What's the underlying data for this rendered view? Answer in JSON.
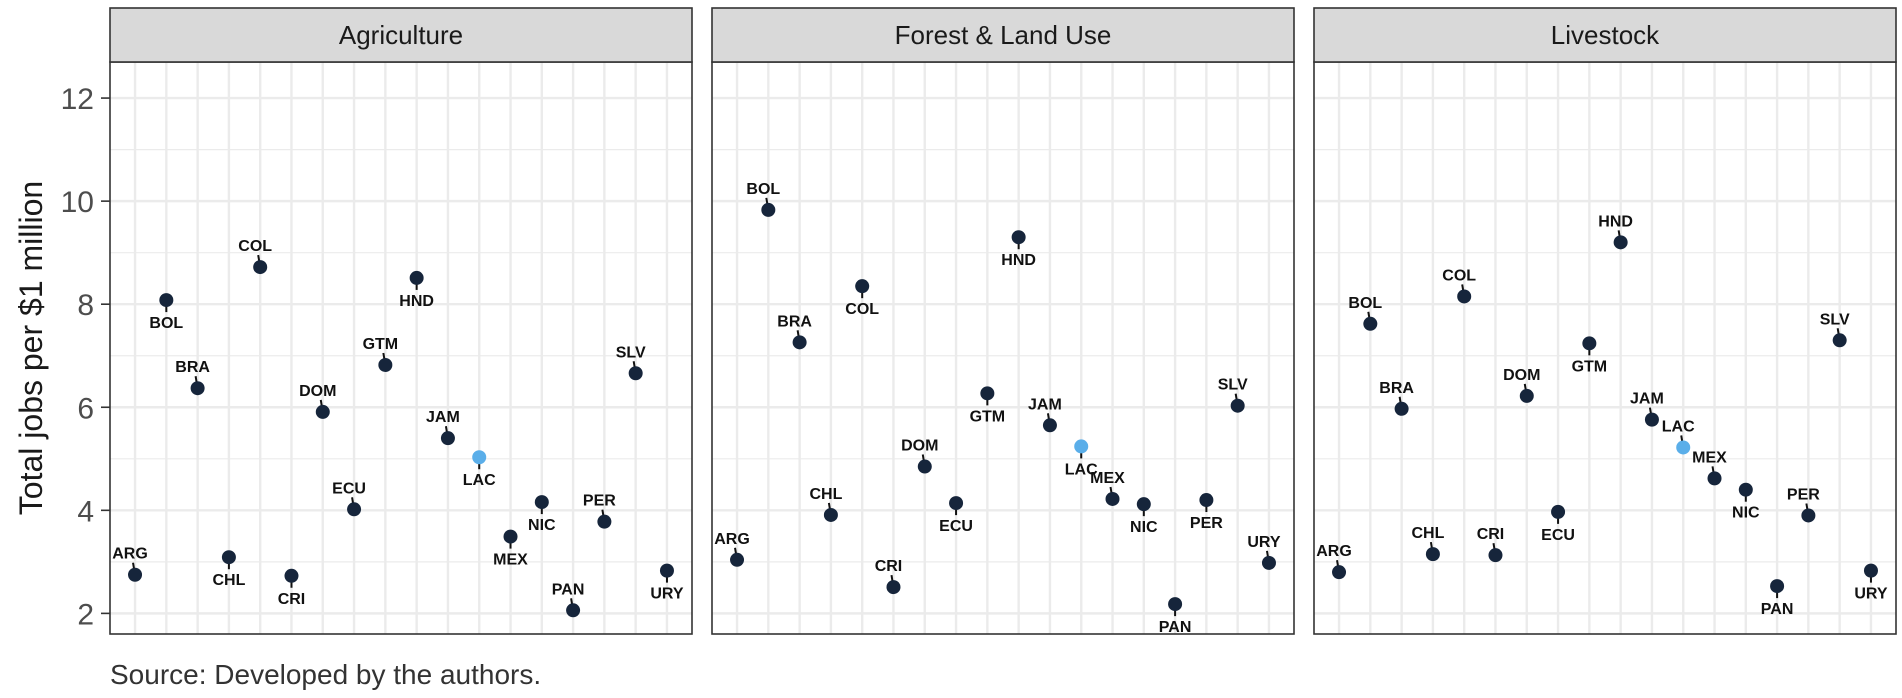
{
  "chart_data": {
    "type": "scatter",
    "ylabel": "Total jobs per $1 million",
    "ylim": [
      1.6,
      12.7
    ],
    "yticks": [
      2,
      4,
      6,
      8,
      10,
      12
    ],
    "grid": true,
    "caption": "Source: Developed by the authors.",
    "countries": [
      "ARG",
      "BOL",
      "BRA",
      "CHL",
      "COL",
      "CRI",
      "DOM",
      "ECU",
      "GTM",
      "HND",
      "JAM",
      "LAC",
      "MEX",
      "NIC",
      "PAN",
      "PER",
      "SLV",
      "URY"
    ],
    "highlight": "LAC",
    "colors": {
      "point": "#16253b",
      "highlight": "#5aaee9",
      "strip_bg": "#d9d9d9",
      "grid": "#ebebeb",
      "panel_border": "#333333"
    },
    "panels": [
      {
        "title": "Agriculture",
        "values": [
          2.75,
          8.08,
          6.37,
          3.09,
          8.72,
          2.73,
          5.91,
          4.02,
          6.82,
          8.51,
          5.4,
          5.03,
          3.49,
          4.16,
          2.06,
          3.78,
          6.66,
          2.83
        ],
        "label_pos": [
          "above",
          "below",
          "above",
          "below",
          "above",
          "below",
          "above",
          "above",
          "above",
          "below",
          "above",
          "below",
          "below",
          "below",
          "above",
          "above",
          "above",
          "below"
        ]
      },
      {
        "title": "Forest & Land Use",
        "values": [
          3.04,
          9.83,
          7.26,
          3.91,
          8.35,
          2.51,
          4.85,
          4.14,
          6.27,
          9.3,
          5.65,
          5.24,
          4.22,
          4.12,
          2.18,
          4.2,
          6.03,
          2.98
        ],
        "label_pos": [
          "above",
          "above",
          "above",
          "above",
          "below",
          "above",
          "above",
          "below",
          "below",
          "below",
          "above",
          "below",
          "above",
          "below",
          "below",
          "below",
          "above",
          "above"
        ]
      },
      {
        "title": "Livestock",
        "values": [
          2.8,
          7.62,
          5.97,
          3.15,
          8.15,
          3.13,
          6.22,
          3.97,
          7.24,
          9.2,
          5.76,
          5.22,
          4.62,
          4.4,
          2.53,
          3.9,
          7.3,
          2.83
        ],
        "label_pos": [
          "above",
          "above",
          "above",
          "above",
          "above",
          "above",
          "above",
          "below",
          "below",
          "above",
          "above",
          "above",
          "above",
          "below",
          "below",
          "above",
          "above",
          "below"
        ]
      }
    ]
  }
}
